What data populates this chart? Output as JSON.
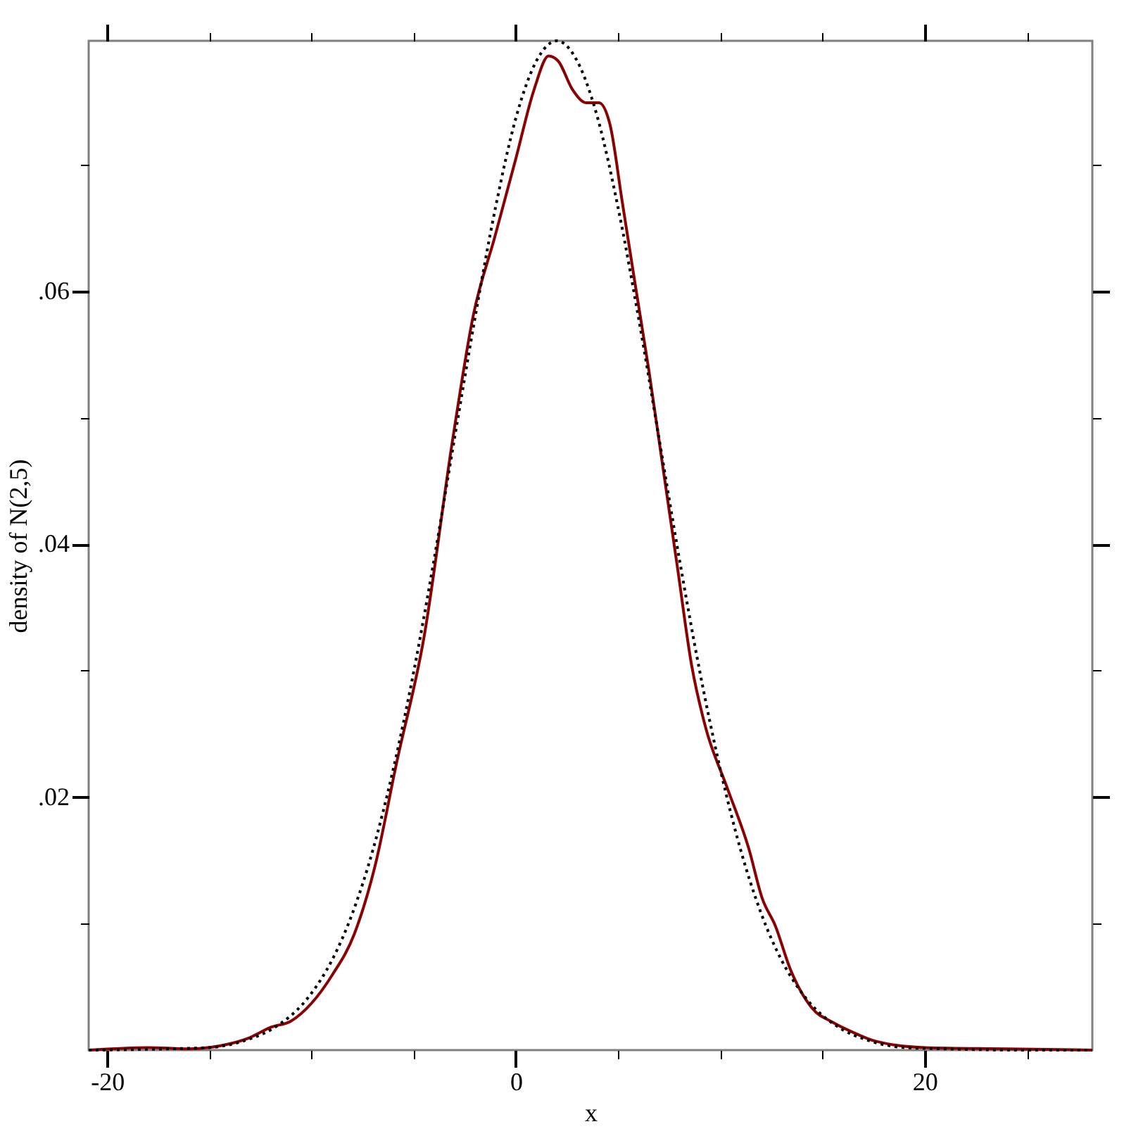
{
  "chart_data": {
    "type": "line",
    "xlabel": "x",
    "ylabel": "density of N(2,5)",
    "xlim": [
      -20.9,
      28.2
    ],
    "ylim": [
      0,
      0.0798
    ],
    "xticks": [
      -20,
      {
        "value": -15,
        "label": null
      },
      {
        "value": -10,
        "label": null
      },
      {
        "value": -5,
        "label": null
      },
      0,
      {
        "value": 5,
        "label": null
      },
      {
        "value": 10,
        "label": null
      },
      {
        "value": 15,
        "label": null
      },
      20,
      {
        "value": 25,
        "label": null
      }
    ],
    "yticks": [
      {
        "value": 0.01,
        "label": null
      },
      {
        "value": 0.02,
        "label": ".02"
      },
      {
        "value": 0.03,
        "label": null
      },
      {
        "value": 0.04,
        "label": ".04"
      },
      {
        "value": 0.05,
        "label": null
      },
      {
        "value": 0.06,
        "label": ".06"
      },
      {
        "value": 0.07,
        "label": null
      }
    ],
    "grid": false,
    "marker": "none",
    "series": [
      {
        "color": "#000000",
        "line_style": "dotted",
        "x": [
          -20.9,
          -17,
          -15,
          -13,
          -12,
          -10,
          -9,
          -8,
          -7,
          -6,
          -5,
          -4,
          -3,
          -2,
          -1,
          0,
          1,
          2,
          3,
          4,
          5,
          6,
          7,
          8,
          9,
          10,
          11,
          12,
          13,
          14,
          16,
          17,
          19,
          21,
          25,
          28.2
        ],
        "values": [
          0,
          0.0001,
          0.0002,
          0.0009,
          0.0016,
          0.0045,
          0.0071,
          0.0108,
          0.0158,
          0.0222,
          0.0299,
          0.0388,
          0.0484,
          0.0579,
          0.0666,
          0.0737,
          0.0782,
          0.0798,
          0.0782,
          0.0737,
          0.0666,
          0.0579,
          0.0484,
          0.0388,
          0.0299,
          0.0222,
          0.0158,
          0.0108,
          0.0071,
          0.0045,
          0.0016,
          0.0009,
          0.0002,
          0.0001,
          0,
          0
        ]
      },
      {
        "color": "#8b0000",
        "line_style": "solid",
        "x": [
          -20.9,
          -18,
          -16,
          -14,
          -13,
          -12,
          -11,
          -10,
          -9,
          -7.9,
          -6.9,
          -5.85,
          -4.5,
          -3.1,
          -2.07,
          -1.03,
          0,
          0.9,
          1.6,
          2.07,
          2.75,
          3.44,
          4.06,
          4.6,
          5.2,
          5.85,
          6.5,
          7.2,
          7.9,
          8.6,
          9.3,
          10.3,
          11.4,
          12.05,
          12.7,
          13.4,
          14.5,
          15.5,
          16.5,
          17.6,
          20,
          24,
          28.2
        ],
        "values": [
          0,
          0.0002,
          0.0001,
          0.0005,
          0.001,
          0.0018,
          0.0023,
          0.0037,
          0.0059,
          0.0092,
          0.0145,
          0.0226,
          0.0326,
          0.0482,
          0.0582,
          0.0643,
          0.0705,
          0.076,
          0.0786,
          0.0782,
          0.076,
          0.0749,
          0.0749,
          0.0732,
          0.0671,
          0.0604,
          0.0538,
          0.046,
          0.0382,
          0.0304,
          0.0254,
          0.0209,
          0.0159,
          0.012,
          0.0098,
          0.0065,
          0.0033,
          0.0022,
          0.0014,
          0.0007,
          0.0002,
          0.0001,
          0
        ]
      }
    ]
  }
}
